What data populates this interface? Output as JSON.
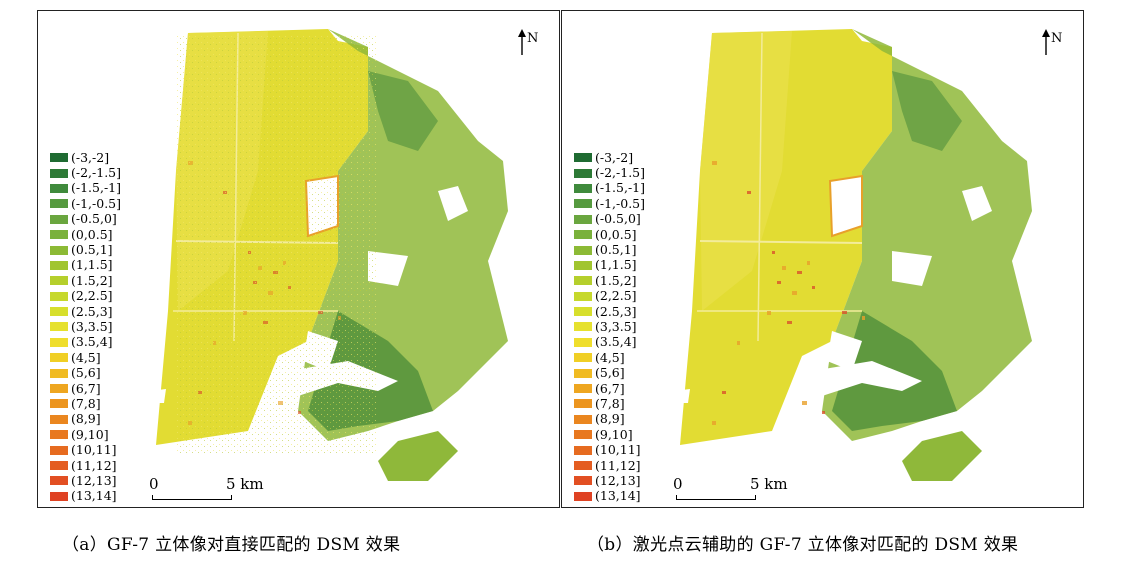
{
  "panels": [
    {
      "id": "a",
      "caption": "（a）GF-7 立体像对直接匹配的 DSM 效果"
    },
    {
      "id": "b",
      "caption": "（b）激光点云辅助的 GF-7 立体像对匹配的 DSM 效果"
    }
  ],
  "north_label": "N",
  "scale": {
    "zero": "0",
    "max": "5 km"
  },
  "legend": [
    {
      "label": "(-3,-2]",
      "color": "#1f6b32"
    },
    {
      "label": "(-2,-1.5]",
      "color": "#2d7a36"
    },
    {
      "label": "(-1.5,-1]",
      "color": "#3f8a3c"
    },
    {
      "label": "(-1,-0.5]",
      "color": "#569a3f"
    },
    {
      "label": "(-0.5,0]",
      "color": "#6aa63f"
    },
    {
      "label": "(0,0.5]",
      "color": "#7ab13b"
    },
    {
      "label": "(0.5,1]",
      "color": "#8cba35"
    },
    {
      "label": "(1,1.5]",
      "color": "#a1c52f"
    },
    {
      "label": "(1.5,2]",
      "color": "#b5cf2c"
    },
    {
      "label": "(2,2.5]",
      "color": "#c6d82c"
    },
    {
      "label": "(2.5,3]",
      "color": "#d7df2c"
    },
    {
      "label": "(3,3.5]",
      "color": "#e6e12e"
    },
    {
      "label": "(3.5,4]",
      "color": "#efde2c"
    },
    {
      "label": "(4,5]",
      "color": "#f0cf25"
    },
    {
      "label": "(5,6]",
      "color": "#f0bb22"
    },
    {
      "label": "(6,7]",
      "color": "#eea620"
    },
    {
      "label": "(7,8]",
      "color": "#ec951f"
    },
    {
      "label": "(8,9]",
      "color": "#ea861f"
    },
    {
      "label": "(9,10]",
      "color": "#e8781f"
    },
    {
      "label": "(10,11]",
      "color": "#e66b20"
    },
    {
      "label": "(11,12]",
      "color": "#e45d21"
    },
    {
      "label": "(12,13]",
      "color": "#e24f22"
    },
    {
      "label": "(13,14]",
      "color": "#df4223"
    }
  ],
  "map_colors": {
    "yellow": "#e2dc33",
    "light_yellow": "#eae04a",
    "green": "#8fb83a",
    "dark_green": "#4f8f3a",
    "orange": "#e8a02a",
    "red": "#d9532a"
  }
}
